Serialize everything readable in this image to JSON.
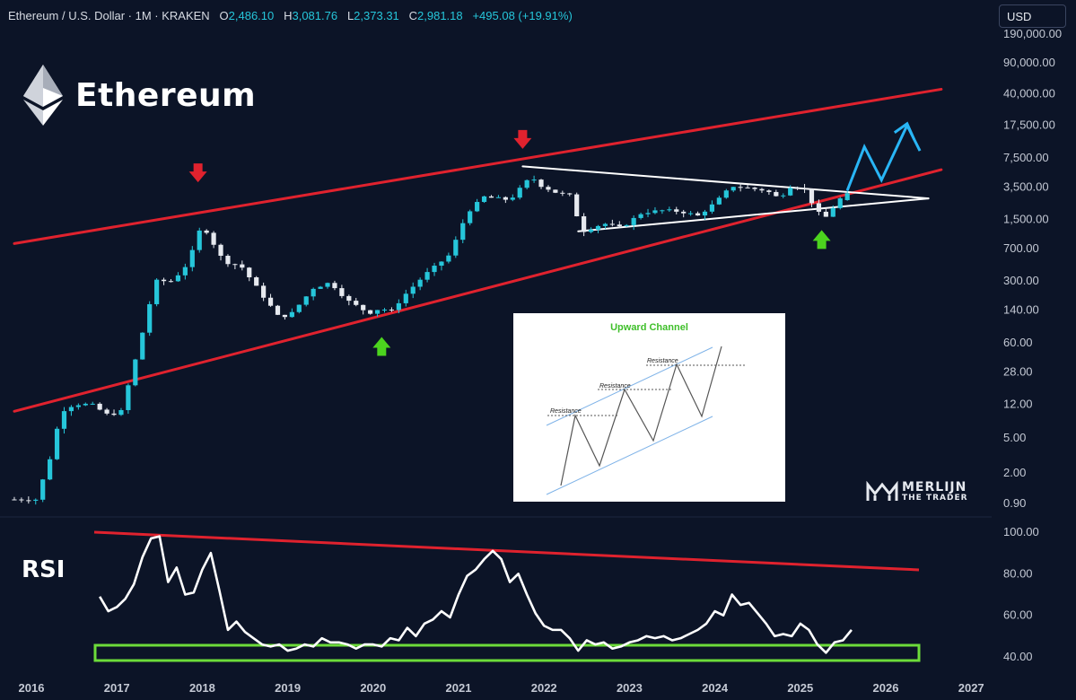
{
  "header": {
    "symbol": "Ethereum / U.S. Dollar · 1M · KRAKEN",
    "open_label": "O",
    "open": "2,486.10",
    "high_label": "H",
    "high": "3,081.76",
    "low_label": "L",
    "low": "2,373.31",
    "close_label": "C",
    "close": "2,981.18",
    "change": "+495.08 (+19.91%)"
  },
  "currency_button": "USD",
  "brand": {
    "name": "Ethereum",
    "logo_icon": "ethereum-diamond-icon"
  },
  "rsi_label": "RSI",
  "watermark": {
    "line1": "MERLIJN",
    "line2": "THE TRADER",
    "icon": "merlijn-logo-icon"
  },
  "inset": {
    "title": "Upward Channel",
    "labels": [
      "Resistance",
      "Resistance",
      "Resistance"
    ]
  },
  "colors": {
    "background": "#0c1427",
    "up_candle": "#26c6da",
    "channel": "#e0222e",
    "triangle": "#ffffff",
    "projection": "#29b6f6",
    "buy_arrow": "#4cd41e",
    "sell_arrow": "#e0222e",
    "rsi_line": "#ffffff",
    "rsi_support_box": "#6ddc3a"
  },
  "chart_data": [
    {
      "type": "candlestick",
      "scale": "log",
      "y_tick_labels": [
        "190,000.00",
        "90,000.00",
        "40,000.00",
        "17,500.00",
        "7,500.00",
        "3,500.00",
        "1,500.00",
        "700.00",
        "300.00",
        "140.00",
        "60.00",
        "28.00",
        "12.00",
        "5.00",
        "2.00",
        "0.90"
      ],
      "x_tick_labels": [
        "2016",
        "2017",
        "2018",
        "2019",
        "2020",
        "2021",
        "2022",
        "2023",
        "2024",
        "2025",
        "2026",
        "2027"
      ],
      "price_path": [
        [
          2015.8,
          1.0
        ],
        [
          2016.05,
          1.0
        ],
        [
          2016.2,
          2.5
        ],
        [
          2016.35,
          10.0
        ],
        [
          2016.5,
          12.0
        ],
        [
          2016.7,
          12.0
        ],
        [
          2016.9,
          9.0
        ],
        [
          2017.05,
          10.0
        ],
        [
          2017.25,
          50.0
        ],
        [
          2017.45,
          300.0
        ],
        [
          2017.65,
          300.0
        ],
        [
          2017.85,
          500.0
        ],
        [
          2017.95,
          1100.0
        ],
        [
          2018.05,
          1100.0
        ],
        [
          2018.25,
          500.0
        ],
        [
          2018.45,
          450.0
        ],
        [
          2018.7,
          210.0
        ],
        [
          2018.9,
          115.0
        ],
        [
          2019.05,
          130.0
        ],
        [
          2019.3,
          250.0
        ],
        [
          2019.5,
          290.0
        ],
        [
          2019.7,
          180.0
        ],
        [
          2019.95,
          130.0
        ],
        [
          2020.1,
          150.0
        ],
        [
          2020.2,
          130.0
        ],
        [
          2020.35,
          200.0
        ],
        [
          2020.6,
          350.0
        ],
        [
          2020.9,
          600.0
        ],
        [
          2021.1,
          1800.0
        ],
        [
          2021.3,
          2700.0
        ],
        [
          2021.6,
          2500.0
        ],
        [
          2021.85,
          4600.0
        ],
        [
          2021.95,
          3700.0
        ],
        [
          2022.15,
          3000.0
        ],
        [
          2022.3,
          2800.0
        ],
        [
          2022.45,
          1100.0
        ],
        [
          2022.7,
          1350.0
        ],
        [
          2022.9,
          1200.0
        ],
        [
          2023.15,
          1800.0
        ],
        [
          2023.4,
          1900.0
        ],
        [
          2023.6,
          1850.0
        ],
        [
          2023.8,
          1650.0
        ],
        [
          2024.0,
          2300.0
        ],
        [
          2024.2,
          3600.0
        ],
        [
          2024.4,
          3400.0
        ],
        [
          2024.6,
          3200.0
        ],
        [
          2024.75,
          2600.0
        ],
        [
          2024.9,
          3700.0
        ],
        [
          2025.05,
          3300.0
        ],
        [
          2025.2,
          1800.0
        ],
        [
          2025.3,
          1600.0
        ],
        [
          2025.45,
          2500.0
        ],
        [
          2025.55,
          2981.18
        ]
      ],
      "ohlc_last": {
        "open": 2486.1,
        "high": 3081.76,
        "low": 2373.31,
        "close": 2981.18,
        "change": 495.08,
        "change_pct": 19.91
      },
      "annotations": {
        "upper_channel": [
          [
            2015.8,
            800
          ],
          [
            2026.65,
            45000
          ]
        ],
        "lower_channel": [
          [
            2015.8,
            10
          ],
          [
            2026.65,
            5500
          ]
        ],
        "triangle_upper": [
          [
            2021.75,
            6000
          ],
          [
            2026.5,
            2600
          ]
        ],
        "triangle_lower": [
          [
            2022.4,
            1100
          ],
          [
            2026.5,
            2600
          ]
        ],
        "projection": [
          [
            2025.55,
            3200
          ],
          [
            2025.75,
            10000
          ],
          [
            2025.95,
            4200
          ],
          [
            2026.25,
            17500
          ],
          [
            2026.4,
            9000
          ]
        ],
        "sell_arrows": [
          [
            2017.95,
            5000
          ],
          [
            2021.75,
            12000
          ]
        ],
        "buy_arrows": [
          [
            2020.1,
            55
          ],
          [
            2025.25,
            900
          ]
        ]
      }
    },
    {
      "type": "line",
      "title": "RSI",
      "y_tick_labels": [
        "100.00",
        "80.00",
        "60.00",
        "40.00"
      ],
      "ylim": [
        36,
        100
      ],
      "x": [
        2016.8,
        2016.9,
        2017.0,
        2017.1,
        2017.2,
        2017.3,
        2017.4,
        2017.5,
        2017.6,
        2017.7,
        2017.8,
        2017.9,
        2018.0,
        2018.1,
        2018.2,
        2018.3,
        2018.4,
        2018.5,
        2018.6,
        2018.7,
        2018.8,
        2018.9,
        2019.0,
        2019.1,
        2019.2,
        2019.3,
        2019.4,
        2019.5,
        2019.6,
        2019.7,
        2019.8,
        2019.9,
        2020.0,
        2020.1,
        2020.2,
        2020.3,
        2020.4,
        2020.5,
        2020.6,
        2020.7,
        2020.8,
        2020.9,
        2021.0,
        2021.1,
        2021.2,
        2021.3,
        2021.4,
        2021.5,
        2021.6,
        2021.7,
        2021.8,
        2021.9,
        2022.0,
        2022.1,
        2022.2,
        2022.3,
        2022.4,
        2022.5,
        2022.6,
        2022.7,
        2022.8,
        2022.9,
        2023.0,
        2023.1,
        2023.2,
        2023.3,
        2023.4,
        2023.5,
        2023.6,
        2023.7,
        2023.8,
        2023.9,
        2024.0,
        2024.1,
        2024.2,
        2024.3,
        2024.4,
        2024.5,
        2024.6,
        2024.7,
        2024.8,
        2024.9,
        2025.0,
        2025.1,
        2025.2,
        2025.3,
        2025.4,
        2025.5,
        2025.6
      ],
      "values": [
        69,
        62,
        64,
        68,
        75,
        88,
        97,
        98,
        76,
        83,
        70,
        71,
        82,
        90,
        72,
        53,
        57,
        52,
        49,
        46,
        45,
        46,
        43,
        44,
        46,
        45,
        49,
        47,
        47,
        46,
        44,
        46,
        46,
        45,
        49,
        48,
        54,
        50,
        56,
        58,
        62,
        59,
        70,
        79,
        82,
        87,
        91,
        87,
        76,
        80,
        70,
        61,
        55,
        53,
        53,
        49,
        43,
        48,
        46,
        47,
        44,
        45,
        47,
        48,
        50,
        49,
        50,
        48,
        49,
        51,
        53,
        56,
        62,
        60,
        70,
        65,
        66,
        61,
        56,
        50,
        51,
        50,
        56,
        53,
        46,
        42,
        47,
        48,
        53
      ]
    }
  ]
}
